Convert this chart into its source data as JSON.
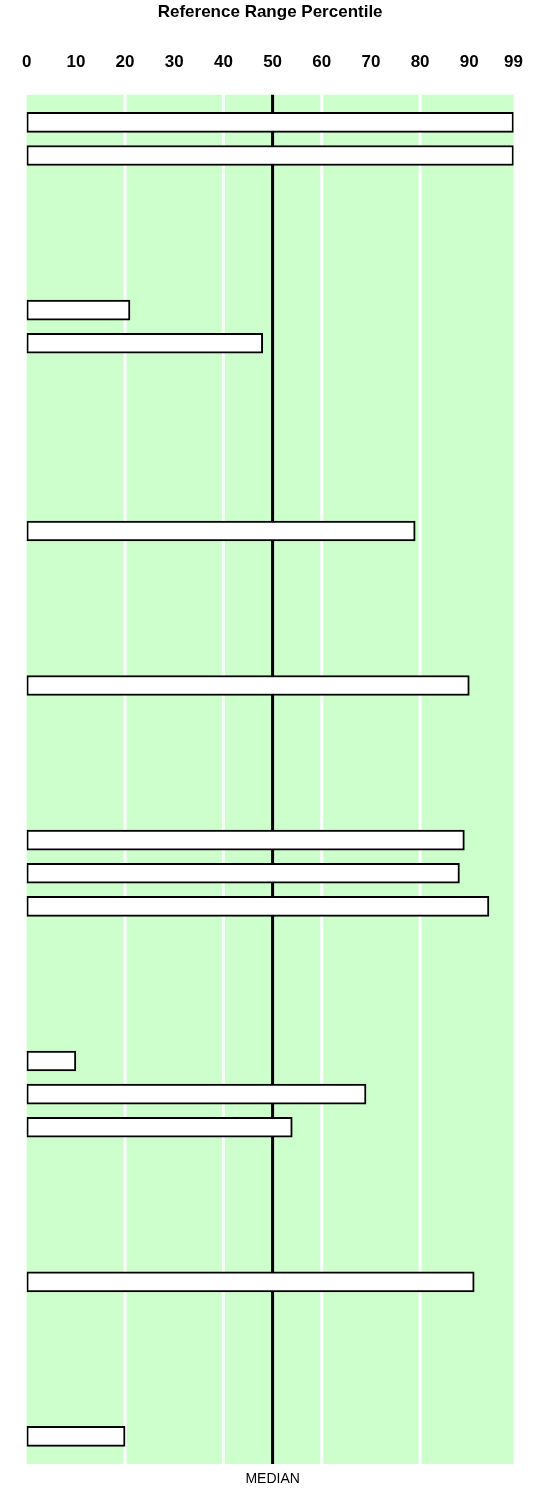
{
  "chart_data": {
    "type": "bar",
    "orientation": "horizontal",
    "xlabel": "Reference Range Percentile",
    "categories": [
      null,
      null,
      null,
      null,
      null,
      null,
      null,
      null,
      null,
      null,
      null,
      null,
      null,
      null,
      null,
      null,
      null,
      null,
      null,
      null,
      null,
      null,
      null,
      null,
      null,
      null,
      null,
      null,
      null,
      null,
      null,
      null,
      null,
      null,
      null,
      null,
      null,
      null,
      null,
      null,
      null,
      null,
      null,
      null,
      null,
      null,
      null,
      null,
      null,
      null,
      null,
      null,
      null,
      null,
      null,
      null,
      null,
      null,
      null,
      null,
      null,
      null,
      null,
      null,
      null,
      null,
      null,
      null,
      null,
      null,
      null,
      null,
      null,
      null,
      null,
      null,
      null,
      null,
      null,
      null,
      null,
      null,
      null,
      null,
      null,
      null,
      null,
      null,
      null,
      null,
      null,
      null,
      null,
      null,
      null,
      null,
      null,
      null,
      null,
      null,
      null,
      null,
      null,
      null,
      null,
      null,
      null,
      null,
      null,
      null,
      null,
      null,
      null,
      null,
      null,
      null,
      null,
      null,
      null,
      null,
      null,
      null,
      null,
      null
    ],
    "series": [
      {
        "color": "#ffffff",
        "values": [
          null,
          null,
          99,
          null,
          null,
          99,
          null,
          null,
          null,
          null,
          null,
          null,
          null,
          null,
          null,
          null,
          null,
          null,
          null,
          21,
          null,
          null,
          48,
          null,
          null,
          null,
          null,
          null,
          null,
          null,
          null,
          null,
          null,
          null,
          null,
          null,
          null,
          null,
          null,
          79,
          null,
          null,
          null,
          null,
          null,
          null,
          null,
          null,
          null,
          null,
          null,
          null,
          null,
          90,
          null,
          null,
          null,
          null,
          null,
          null,
          null,
          null,
          null,
          null,
          null,
          null,
          null,
          89,
          null,
          null,
          88,
          null,
          null,
          94,
          null,
          null,
          null,
          null,
          null,
          null,
          null,
          null,
          null,
          null,
          null,
          null,
          null,
          10,
          null,
          null,
          69,
          null,
          null,
          54,
          null,
          null,
          null,
          null,
          null,
          null,
          null,
          null,
          null,
          null,
          null,
          null,
          null,
          91,
          null,
          null,
          null,
          null,
          null,
          null,
          null,
          null,
          null,
          null,
          null,
          null,
          null,
          20,
          null,
          null
        ]
      }
    ],
    "xlim": [
      0,
      99
    ],
    "xticks": [
      0,
      10,
      20,
      30,
      40,
      50,
      60,
      70,
      80,
      90,
      99
    ],
    "bands": [
      {
        "axis": "x",
        "from": 0,
        "to": 99,
        "color": "#ccffcc"
      }
    ],
    "ref_lines": [
      {
        "axis": "x",
        "value": 20,
        "color": "#ffffff"
      },
      {
        "axis": "x",
        "value": 40,
        "color": "#ffffff"
      },
      {
        "axis": "x",
        "value": 60,
        "color": "#ffffff"
      },
      {
        "axis": "x",
        "value": 80,
        "color": "#ffffff"
      },
      {
        "axis": "x",
        "value": 50,
        "color": "#000000",
        "label": "MEDIAN"
      }
    ]
  }
}
